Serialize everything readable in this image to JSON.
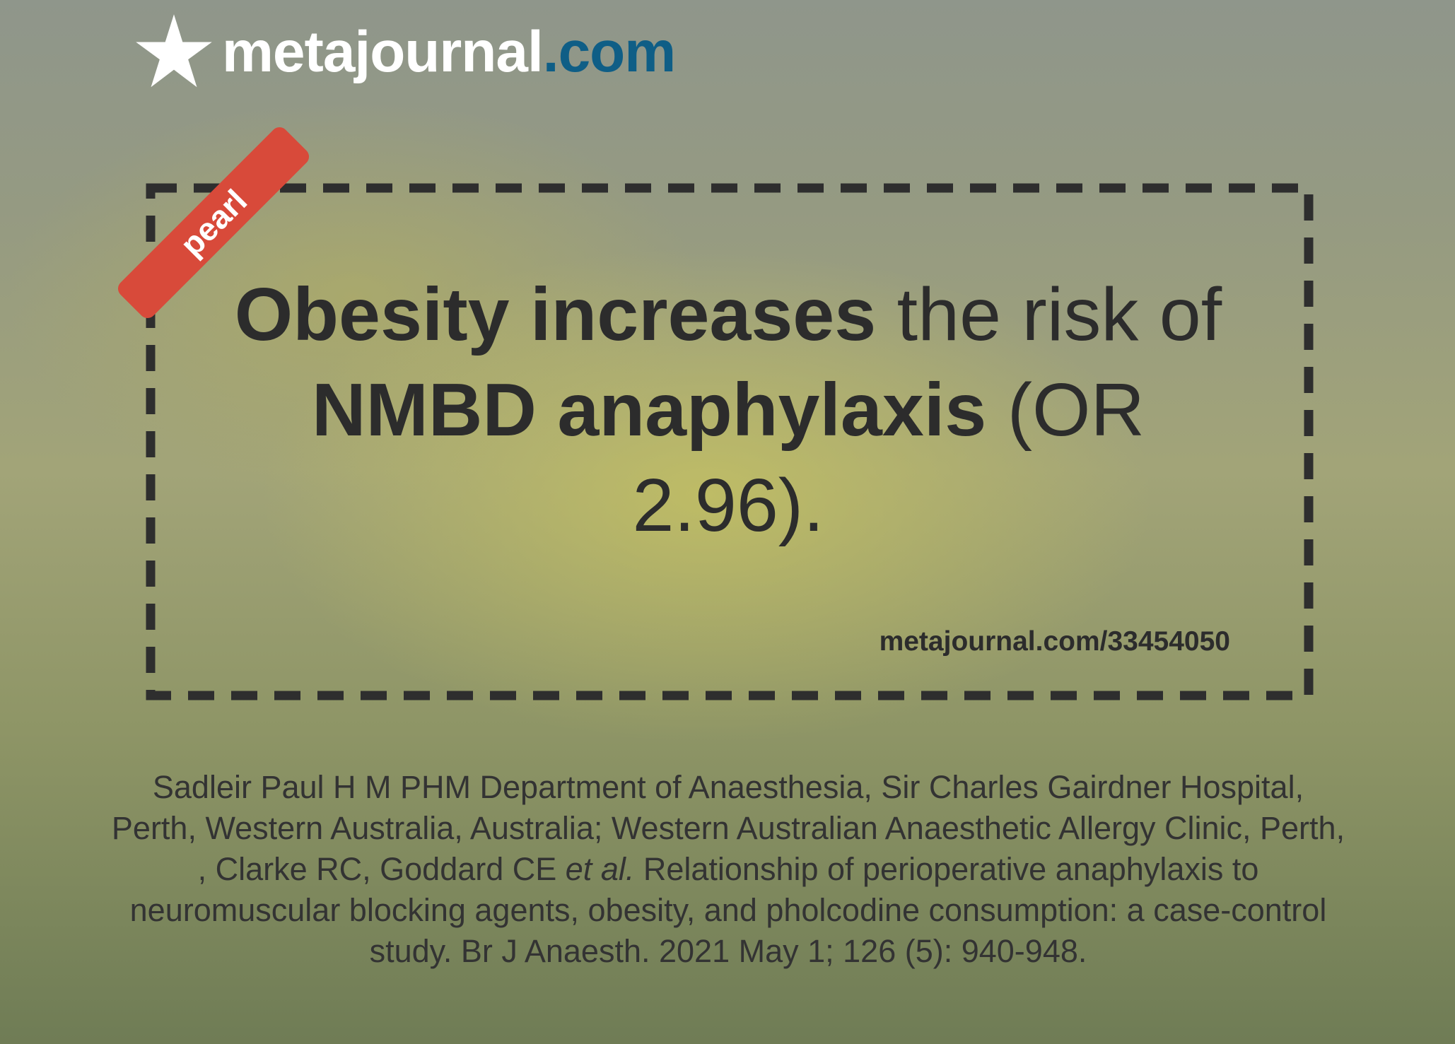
{
  "logo": {
    "name": "metajournal",
    "suffix": ".com"
  },
  "badge": "pearl",
  "headline": {
    "parts": [
      "Obesity increases",
      " the risk of ",
      "NMBD anaphylaxis",
      " (OR 2.96)."
    ]
  },
  "link": "metajournal.com/33454050",
  "citation": {
    "before": "Sadleir Paul H M PHM Department of Anaesthesia, Sir Charles Gairdner Hospital, Perth, Western Australia, Australia; Western Australian Anaesthetic Allergy Clinic, Perth, , Clarke RC, Goddard CE ",
    "italic": "et al.",
    "after": " Relationship of perioperative anaphylaxis to neuromuscular blocking agents, obesity, and pholcodine consumption: a case-control study. Br J Anaesth. 2021 May 1; 126 (5): 940-948."
  }
}
